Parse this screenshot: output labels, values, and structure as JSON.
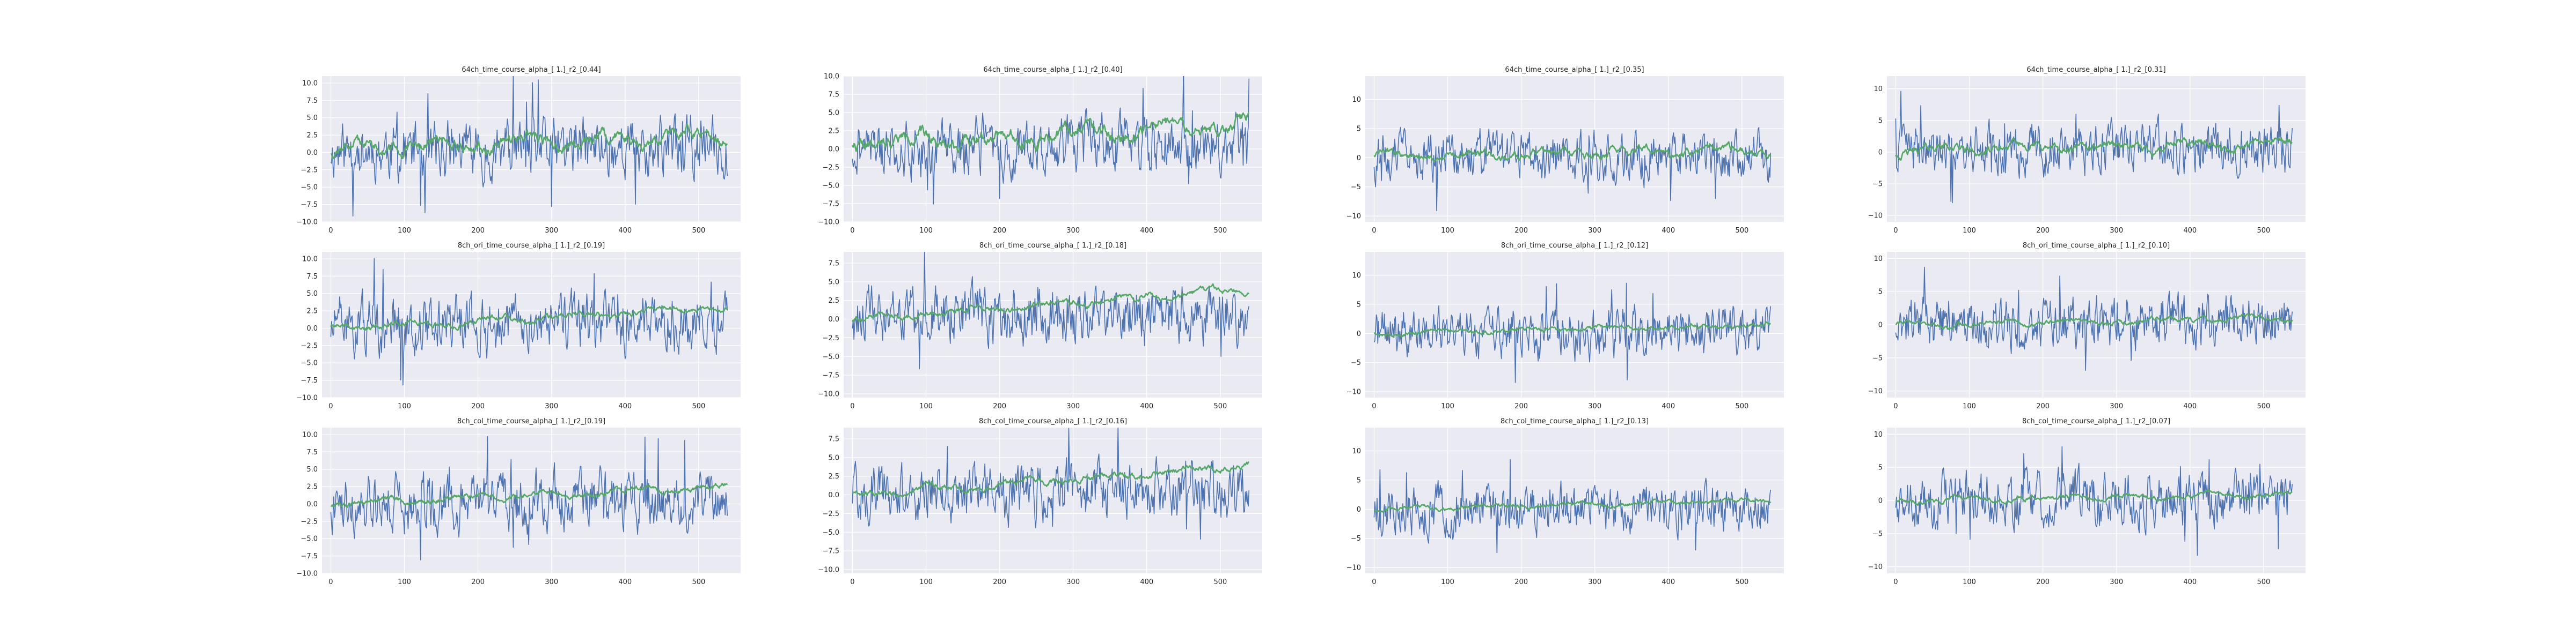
{
  "figure": {
    "background": "#ffffff",
    "axes_facecolor": "#eaeaf2",
    "grid_color": "#ffffff",
    "series_colors": {
      "blue": "#4c72b0",
      "green": "#55a868"
    }
  },
  "chart_data": [
    {
      "type": "line",
      "title": "64ch_time_course_alpha_[ 1.]_r2_[0.44]",
      "xlim": [
        -12,
        557
      ],
      "ylim": [
        -10,
        11
      ],
      "xticks": [
        0,
        100,
        200,
        300,
        400,
        500
      ],
      "yticks": [
        -10.0,
        -7.5,
        -5.0,
        -2.5,
        0.0,
        2.5,
        5.0,
        7.5,
        10.0
      ],
      "ytick_labels": [
        "−10.0",
        "−7.5",
        "−5.0",
        "−2.5",
        "0.0",
        "2.5",
        "5.0",
        "7.5",
        "10.0"
      ],
      "grid": true,
      "n_points": 540,
      "series": [
        {
          "color": "#4c72b0",
          "mean": 0.3,
          "amp": 3.2,
          "trend": 0.5,
          "seed": 11
        },
        {
          "color": "#55a868",
          "mean": 0.5,
          "amp": 1.5,
          "trend": 2.0,
          "seed": 12,
          "smooth": true
        }
      ]
    },
    {
      "type": "line",
      "title": "64ch_time_course_alpha_[ 1.]_r2_[0.40]",
      "xlim": [
        -12,
        557
      ],
      "ylim": [
        -10,
        10
      ],
      "xticks": [
        0,
        100,
        200,
        300,
        400,
        500
      ],
      "yticks": [
        -10.0,
        -7.5,
        -5.0,
        -2.5,
        0.0,
        2.5,
        5.0,
        7.5,
        10.0
      ],
      "ytick_labels": [
        "−10.0",
        "−7.5",
        "−5.0",
        "−2.5",
        "0.0",
        "2.5",
        "5.0",
        "7.5",
        "10.0"
      ],
      "grid": true,
      "n_points": 540,
      "series": [
        {
          "color": "#4c72b0",
          "mean": 0.2,
          "amp": 3.0,
          "trend": 0.5,
          "seed": 21
        },
        {
          "color": "#55a868",
          "mean": 0.8,
          "amp": 1.6,
          "trend": 2.5,
          "seed": 22,
          "smooth": true
        }
      ]
    },
    {
      "type": "line",
      "title": "64ch_time_course_alpha_[ 1.]_r2_[0.35]",
      "xlim": [
        -12,
        557
      ],
      "ylim": [
        -11,
        14
      ],
      "xticks": [
        0,
        100,
        200,
        300,
        400,
        500
      ],
      "yticks": [
        -10,
        -5,
        0,
        5,
        10
      ],
      "ytick_labels": [
        "−10",
        "−5",
        "0",
        "5",
        "10"
      ],
      "grid": true,
      "n_points": 540,
      "series": [
        {
          "color": "#4c72b0",
          "mean": 0.0,
          "amp": 3.2,
          "trend": 0.3,
          "seed": 31
        },
        {
          "color": "#55a868",
          "mean": 0.3,
          "amp": 1.2,
          "trend": 1.0,
          "seed": 32,
          "smooth": true
        }
      ]
    },
    {
      "type": "line",
      "title": "64ch_time_course_alpha_[ 1.]_r2_[0.31]",
      "xlim": [
        -12,
        557
      ],
      "ylim": [
        -11,
        12
      ],
      "xticks": [
        0,
        100,
        200,
        300,
        400,
        500
      ],
      "yticks": [
        -10,
        -5,
        0,
        5,
        10
      ],
      "ytick_labels": [
        "−10",
        "−5",
        "0",
        "5",
        "10"
      ],
      "grid": true,
      "n_points": 540,
      "series": [
        {
          "color": "#4c72b0",
          "mean": 0.2,
          "amp": 3.0,
          "trend": 0.2,
          "seed": 41
        },
        {
          "color": "#55a868",
          "mean": 0.3,
          "amp": 1.2,
          "trend": 1.0,
          "seed": 42,
          "smooth": true
        }
      ]
    },
    {
      "type": "line",
      "title": "8ch_ori_time_course_alpha_[ 1.]_r2_[0.19]",
      "xlim": [
        -12,
        557
      ],
      "ylim": [
        -10,
        11
      ],
      "xticks": [
        0,
        100,
        200,
        300,
        400,
        500
      ],
      "yticks": [
        -10.0,
        -7.5,
        -5.0,
        -2.5,
        0.0,
        2.5,
        5.0,
        7.5,
        10.0
      ],
      "ytick_labels": [
        "−10.0",
        "−7.5",
        "−5.0",
        "−2.5",
        "0.0",
        "2.5",
        "5.0",
        "7.5",
        "10.0"
      ],
      "grid": true,
      "n_points": 540,
      "series": [
        {
          "color": "#4c72b0",
          "mean": 0.3,
          "amp": 3.2,
          "trend": 0.5,
          "seed": 51
        },
        {
          "color": "#55a868",
          "mean": 0.0,
          "amp": 0.7,
          "trend": 3.0,
          "seed": 52,
          "smooth": true
        }
      ]
    },
    {
      "type": "line",
      "title": "8ch_ori_time_course_alpha_[ 1.]_r2_[0.18]",
      "xlim": [
        -12,
        557
      ],
      "ylim": [
        -10.5,
        9
      ],
      "xticks": [
        0,
        100,
        200,
        300,
        400,
        500
      ],
      "yticks": [
        -10.0,
        -7.5,
        -5.0,
        -2.5,
        0.0,
        2.5,
        5.0,
        7.5
      ],
      "ytick_labels": [
        "−10.0",
        "−7.5",
        "−5.0",
        "−2.5",
        "0.0",
        "2.5",
        "5.0",
        "7.5"
      ],
      "grid": true,
      "n_points": 540,
      "series": [
        {
          "color": "#4c72b0",
          "mean": 0.2,
          "amp": 3.0,
          "trend": 0.5,
          "seed": 61
        },
        {
          "color": "#55a868",
          "mean": 0.0,
          "amp": 0.7,
          "trend": 4.0,
          "seed": 62,
          "smooth": true
        }
      ]
    },
    {
      "type": "line",
      "title": "8ch_ori_time_course_alpha_[ 1.]_r2_[0.12]",
      "xlim": [
        -12,
        557
      ],
      "ylim": [
        -11,
        14
      ],
      "xticks": [
        0,
        100,
        200,
        300,
        400,
        500
      ],
      "yticks": [
        -10,
        -5,
        0,
        5,
        10
      ],
      "ytick_labels": [
        "−10",
        "−5",
        "0",
        "5",
        "10"
      ],
      "grid": true,
      "n_points": 540,
      "series": [
        {
          "color": "#4c72b0",
          "mean": 0.0,
          "amp": 3.2,
          "trend": 0.3,
          "seed": 71
        },
        {
          "color": "#55a868",
          "mean": 0.0,
          "amp": 0.6,
          "trend": 1.5,
          "seed": 72,
          "smooth": true
        }
      ]
    },
    {
      "type": "line",
      "title": "8ch_ori_time_course_alpha_[ 1.]_r2_[0.10]",
      "xlim": [
        -12,
        557
      ],
      "ylim": [
        -11,
        11
      ],
      "xticks": [
        0,
        100,
        200,
        300,
        400,
        500
      ],
      "yticks": [
        -10,
        -5,
        0,
        5,
        10
      ],
      "ytick_labels": [
        "−10",
        "−5",
        "0",
        "5",
        "10"
      ],
      "grid": true,
      "n_points": 540,
      "series": [
        {
          "color": "#4c72b0",
          "mean": 0.2,
          "amp": 3.0,
          "trend": 0.2,
          "seed": 81
        },
        {
          "color": "#55a868",
          "mean": 0.0,
          "amp": 0.6,
          "trend": 1.0,
          "seed": 82,
          "smooth": true
        }
      ]
    },
    {
      "type": "line",
      "title": "8ch_col_time_course_alpha_[ 1.]_r2_[0.19]",
      "xlim": [
        -12,
        557
      ],
      "ylim": [
        -10,
        11
      ],
      "xticks": [
        0,
        100,
        200,
        300,
        400,
        500
      ],
      "yticks": [
        -10.0,
        -7.5,
        -5.0,
        -2.5,
        0.0,
        2.5,
        5.0,
        7.5,
        10.0
      ],
      "ytick_labels": [
        "−10.0",
        "−7.5",
        "−5.0",
        "−2.5",
        "0.0",
        "2.5",
        "5.0",
        "7.5",
        "10.0"
      ],
      "grid": true,
      "n_points": 540,
      "series": [
        {
          "color": "#4c72b0",
          "mean": 0.3,
          "amp": 3.2,
          "trend": 0.5,
          "seed": 91
        },
        {
          "color": "#55a868",
          "mean": 0.0,
          "amp": 0.7,
          "trend": 2.5,
          "seed": 92,
          "smooth": true
        }
      ]
    },
    {
      "type": "line",
      "title": "8ch_col_time_course_alpha_[ 1.]_r2_[0.16]",
      "xlim": [
        -12,
        557
      ],
      "ylim": [
        -10.5,
        9
      ],
      "xticks": [
        0,
        100,
        200,
        300,
        400,
        500
      ],
      "yticks": [
        -10.0,
        -7.5,
        -5.0,
        -2.5,
        0.0,
        2.5,
        5.0,
        7.5
      ],
      "ytick_labels": [
        "−10.0",
        "−7.5",
        "−5.0",
        "−2.5",
        "0.0",
        "2.5",
        "5.0",
        "7.5"
      ],
      "grid": true,
      "n_points": 540,
      "series": [
        {
          "color": "#4c72b0",
          "mean": 0.2,
          "amp": 3.0,
          "trend": 0.5,
          "seed": 101
        },
        {
          "color": "#55a868",
          "mean": 0.0,
          "amp": 0.7,
          "trend": 4.0,
          "seed": 102,
          "smooth": true
        }
      ]
    },
    {
      "type": "line",
      "title": "8ch_col_time_course_alpha_[ 1.]_r2_[0.13]",
      "xlim": [
        -12,
        557
      ],
      "ylim": [
        -11,
        14
      ],
      "xticks": [
        0,
        100,
        200,
        300,
        400,
        500
      ],
      "yticks": [
        -10,
        -5,
        0,
        5,
        10
      ],
      "ytick_labels": [
        "−10",
        "−5",
        "0",
        "5",
        "10"
      ],
      "grid": true,
      "n_points": 540,
      "series": [
        {
          "color": "#4c72b0",
          "mean": 0.0,
          "amp": 3.2,
          "trend": 0.3,
          "seed": 111
        },
        {
          "color": "#55a868",
          "mean": 0.0,
          "amp": 0.6,
          "trend": 1.5,
          "seed": 112,
          "smooth": true
        }
      ]
    },
    {
      "type": "line",
      "title": "8ch_col_time_course_alpha_[ 1.]_r2_[0.07]",
      "xlim": [
        -12,
        557
      ],
      "ylim": [
        -11,
        11
      ],
      "xticks": [
        0,
        100,
        200,
        300,
        400,
        500
      ],
      "yticks": [
        -10,
        -5,
        0,
        5,
        10
      ],
      "ytick_labels": [
        "−10",
        "−5",
        "0",
        "5",
        "10"
      ],
      "grid": true,
      "n_points": 540,
      "series": [
        {
          "color": "#4c72b0",
          "mean": 0.2,
          "amp": 3.0,
          "trend": 0.2,
          "seed": 121
        },
        {
          "color": "#55a868",
          "mean": 0.0,
          "amp": 0.6,
          "trend": 1.0,
          "seed": 122,
          "smooth": true
        }
      ]
    }
  ]
}
